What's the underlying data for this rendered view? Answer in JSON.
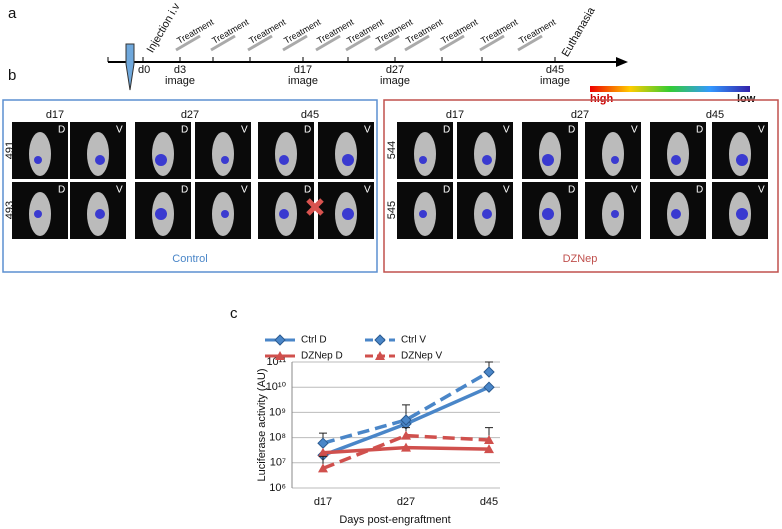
{
  "panels": {
    "a": "a",
    "b": "b",
    "c": "c"
  },
  "timeline": {
    "injection": "Injection i.v",
    "treatments": [
      "Treatment",
      "Treatment",
      "Treatment",
      "Treatment",
      "Treatment",
      "Treatment",
      "Treatment",
      "Treatment",
      "Treatment",
      "Treatment",
      "Treatment"
    ],
    "end": "Euthanasia",
    "start": "d0",
    "points": [
      {
        "day": "d3",
        "note": "image"
      },
      {
        "day": "d17",
        "note": "image"
      },
      {
        "day": "d27",
        "note": "image"
      },
      {
        "day": "d45",
        "note": "image"
      }
    ]
  },
  "color_scale": {
    "high": "high",
    "low": "low"
  },
  "groups": [
    {
      "name": "Control",
      "days": [
        "d17",
        "d27",
        "d45"
      ],
      "mice": [
        "491",
        "493"
      ],
      "views": [
        "D",
        "V"
      ]
    },
    {
      "name": "DZNep",
      "days": [
        "d17",
        "d27",
        "d45"
      ],
      "mice": [
        "544",
        "545"
      ],
      "views": [
        "D",
        "V"
      ]
    }
  ],
  "chart_data": {
    "type": "line",
    "y_label": "Luciferase activity (AU)",
    "x_label": "Days post-engraftment",
    "categories": [
      "d17",
      "d27",
      "d45"
    ],
    "log_scale": true,
    "grid": true,
    "ylim": [
      1000000,
      100000000000
    ],
    "yticks": [
      {
        "value": 1000000,
        "label": "10⁶"
      },
      {
        "value": 10000000,
        "label": "10⁷"
      },
      {
        "value": 100000000,
        "label": "10⁸"
      },
      {
        "value": 1000000000,
        "label": "10⁹"
      },
      {
        "value": 10000000000,
        "label": "10¹⁰"
      },
      {
        "value": 100000000000,
        "label": "10¹¹"
      }
    ],
    "series": [
      {
        "name": "Ctrl D",
        "color": "#4a86c8",
        "dash": false,
        "marker": "diamond",
        "values": [
          20000000,
          350000000,
          10000000000
        ]
      },
      {
        "name": "Ctrl V",
        "color": "#4a86c8",
        "dash": true,
        "marker": "diamond",
        "values": [
          60000000,
          500000000,
          40000000000
        ],
        "errors": [
          90000000,
          1500000000,
          60000000000
        ]
      },
      {
        "name": "DZNep D",
        "color": "#d0504d",
        "dash": false,
        "marker": "triangle",
        "values": [
          25000000,
          40000000,
          35000000
        ]
      },
      {
        "name": "DZNep V",
        "color": "#d0504d",
        "dash": true,
        "marker": "triangle",
        "values": [
          6000000,
          120000000,
          80000000
        ],
        "errors": [
          12000000,
          130000000,
          170000000
        ]
      }
    ]
  }
}
